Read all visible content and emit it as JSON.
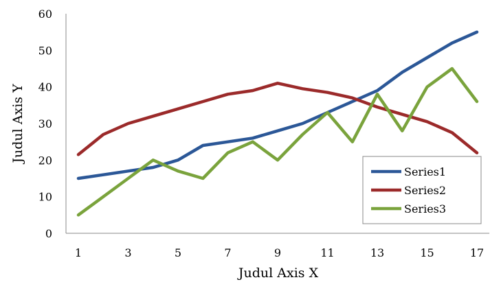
{
  "chart_data": {
    "type": "line",
    "x": [
      1,
      2,
      3,
      4,
      5,
      6,
      7,
      8,
      9,
      10,
      11,
      12,
      13,
      14,
      15,
      16,
      17
    ],
    "x_tick_labels": [
      "1",
      "3",
      "5",
      "7",
      "9",
      "11",
      "13",
      "15",
      "17"
    ],
    "y_tick_labels": [
      "0",
      "10",
      "20",
      "30",
      "40",
      "50",
      "60"
    ],
    "xlim": [
      1,
      17
    ],
    "ylim": [
      0,
      60
    ],
    "xlabel": "Judul Axis X",
    "ylabel": "Judul Axis Y",
    "title": "",
    "grid": false,
    "legend_position": "bottom-right",
    "series": [
      {
        "name": "Series1",
        "color": "#2b5797",
        "values": [
          15,
          16,
          17,
          18,
          20,
          24,
          25,
          26,
          28,
          30,
          33,
          36,
          39,
          44,
          48,
          52,
          55
        ]
      },
      {
        "name": "Series2",
        "color": "#9b2a2a",
        "values": [
          21.5,
          27,
          30,
          32,
          34,
          36,
          38,
          39,
          41,
          39.5,
          38.5,
          37,
          34.5,
          32.5,
          30.5,
          27.5,
          22
        ]
      },
      {
        "name": "Series3",
        "color": "#7aa33c",
        "values": [
          5,
          10,
          15,
          20,
          17,
          15,
          22,
          25,
          20,
          27,
          33,
          25,
          38,
          28,
          40,
          45,
          36
        ]
      }
    ]
  }
}
